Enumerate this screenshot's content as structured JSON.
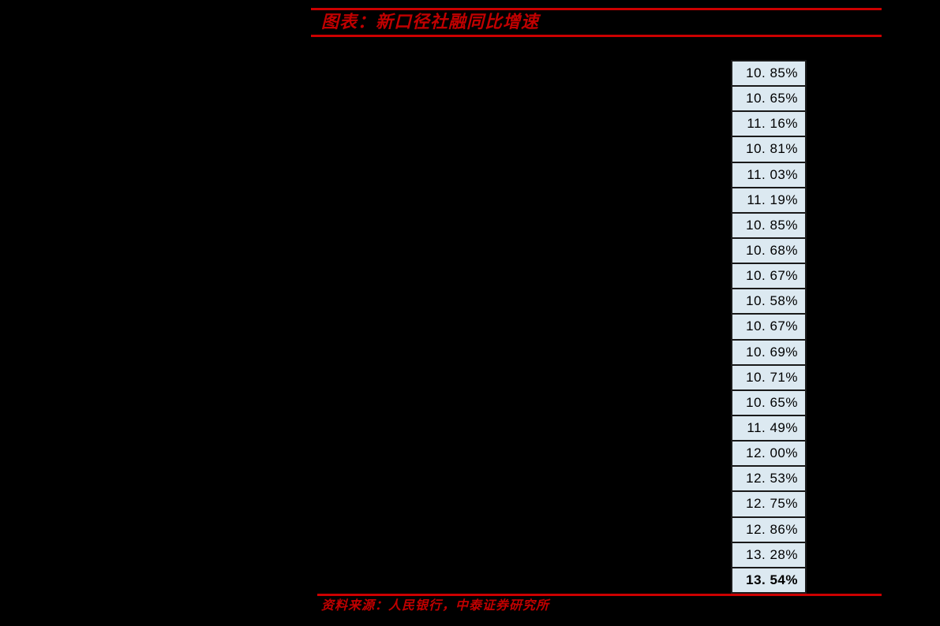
{
  "page": {
    "background_color": "#000000"
  },
  "figure": {
    "title": "图表：新口径社融同比增速",
    "source": "资料来源：人民银行，中泰证券研究所",
    "accent_color": "#c00000",
    "rule_color": "#cc0000",
    "cell_fill_color": "#dce9f1"
  },
  "chart_data": {
    "type": "table",
    "title": "新口径社融同比增速",
    "unit": "%",
    "values": [
      10.85,
      10.65,
      11.16,
      10.81,
      11.03,
      11.19,
      10.85,
      10.68,
      10.67,
      10.58,
      10.67,
      10.69,
      10.71,
      10.65,
      11.49,
      12.0,
      12.53,
      12.75,
      12.86,
      13.28,
      13.54
    ],
    "cells_display": [
      "10. 85%",
      "10. 65%",
      "11. 16%",
      "10. 81%",
      "11. 03%",
      "11. 19%",
      "10. 85%",
      "10. 68%",
      "10. 67%",
      "10. 58%",
      "10. 67%",
      "10. 69%",
      "10. 71%",
      "10. 65%",
      "11. 49%",
      "12. 00%",
      "12. 53%",
      "12. 75%",
      "12. 86%",
      "13. 28%",
      "13. 54%"
    ],
    "bold_last_row": true,
    "layout": {
      "orientation": "single-column",
      "rows": 21,
      "grid": false,
      "legend": "none"
    }
  }
}
